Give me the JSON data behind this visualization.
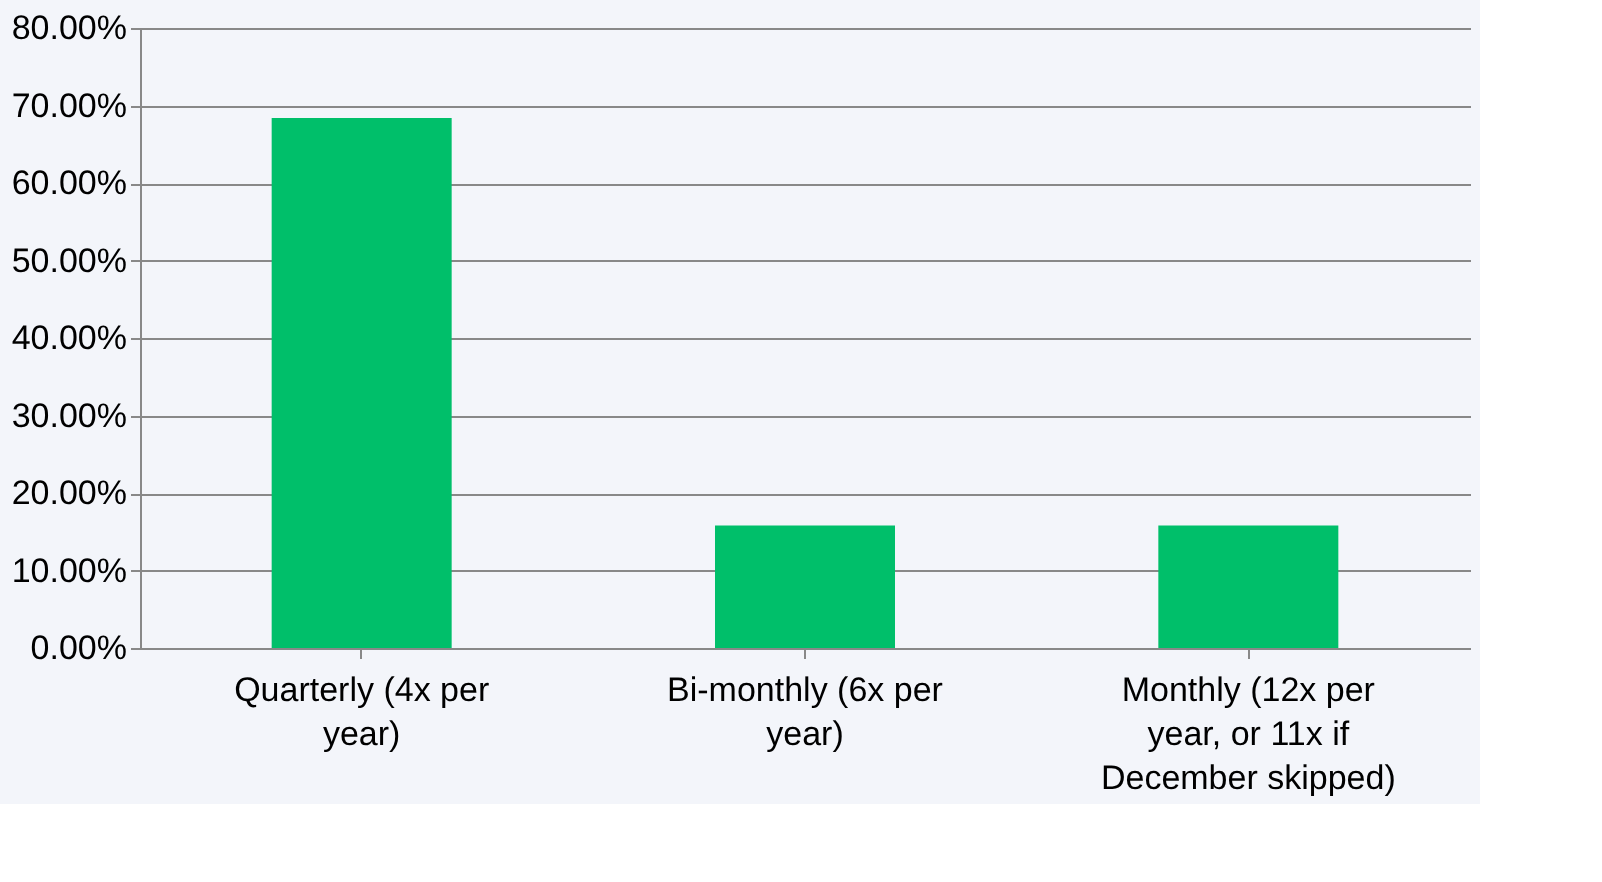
{
  "chart_data": {
    "type": "bar",
    "categories": [
      "Quarterly (4x per year)",
      "Bi-monthly (6x per year)",
      "Monthly (12x per year, or 11x if December skipped)"
    ],
    "values": [
      68.4,
      15.8,
      15.8
    ],
    "color": "#00bf6a",
    "ylim": [
      0,
      80
    ],
    "yticks": [
      {
        "value": 0,
        "label": "0.00%"
      },
      {
        "value": 10,
        "label": "10.00%"
      },
      {
        "value": 20,
        "label": "20.00%"
      },
      {
        "value": 30,
        "label": "30.00%"
      },
      {
        "value": 40,
        "label": "40.00%"
      },
      {
        "value": 50,
        "label": "50.00%"
      },
      {
        "value": 60,
        "label": "60.00%"
      },
      {
        "value": 70,
        "label": "70.00%"
      },
      {
        "value": 80,
        "label": "80.00%"
      }
    ],
    "grid": "y"
  }
}
